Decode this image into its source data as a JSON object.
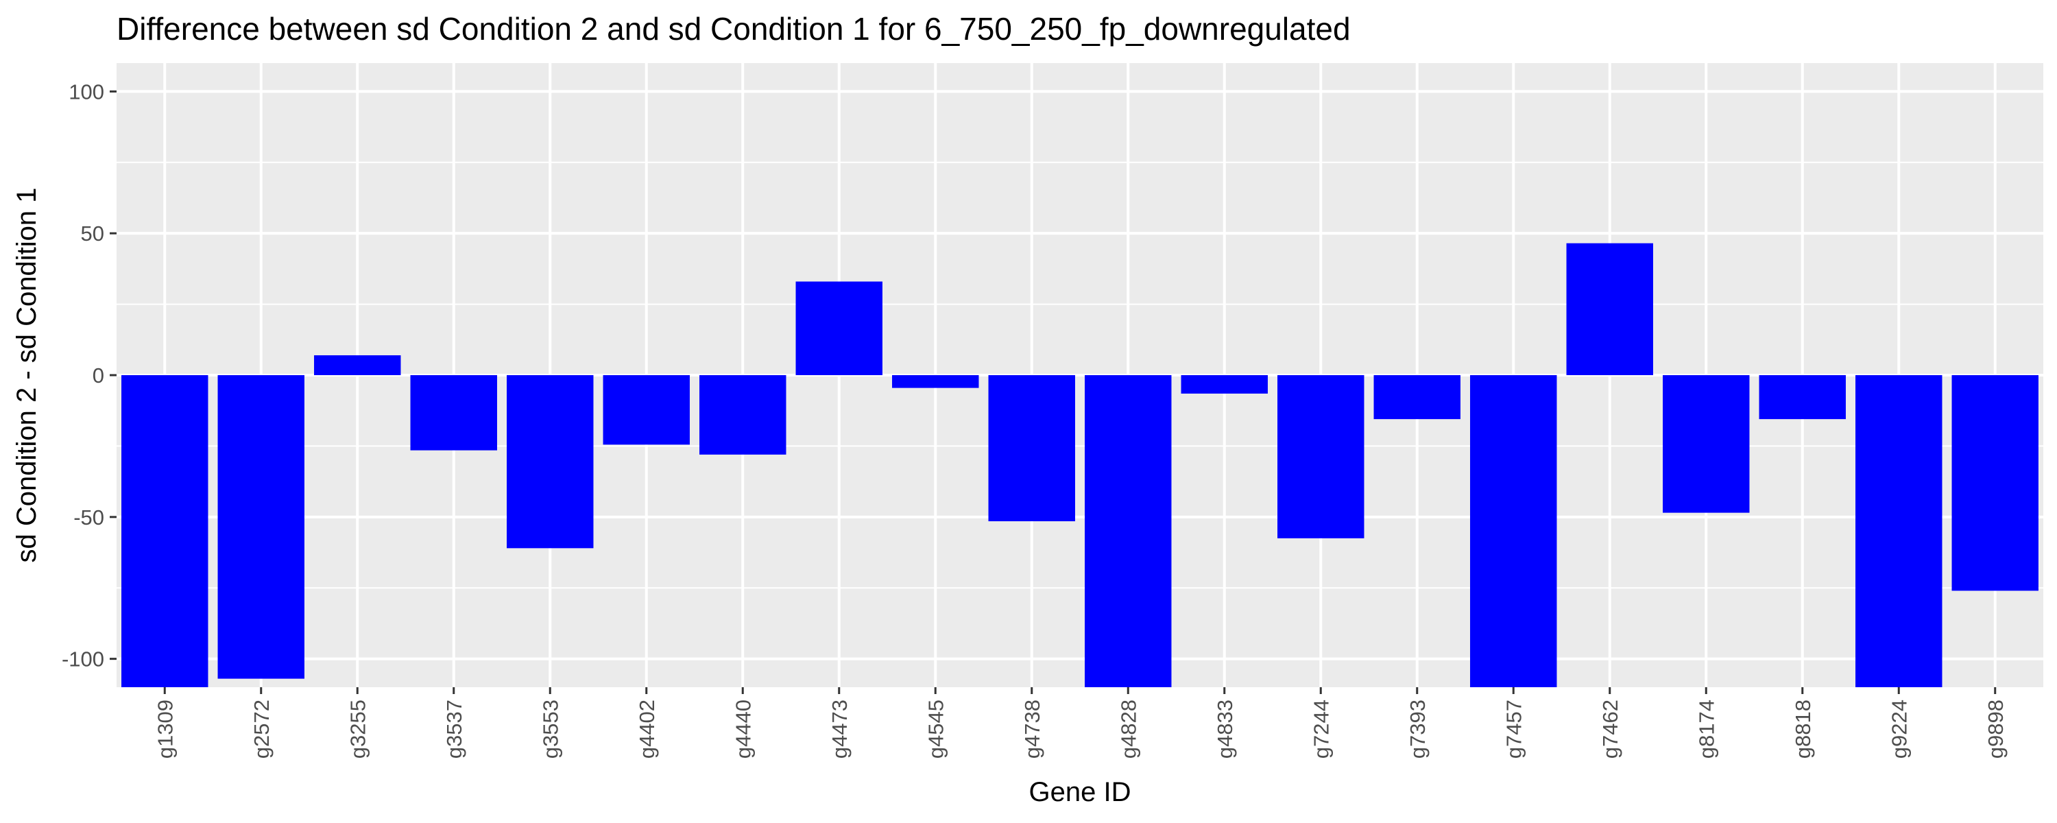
{
  "chart_data": {
    "type": "bar",
    "title": "Difference between sd Condition 2 and sd Condition 1 for 6_750_250_fp_downregulated",
    "xlabel": "Gene ID",
    "ylabel": "sd Condition 2 - sd Condition 1",
    "categories": [
      "g1309",
      "g2572",
      "g3255",
      "g3537",
      "g3553",
      "g4402",
      "g4440",
      "g4473",
      "g4545",
      "g4738",
      "g4828",
      "g4833",
      "g7244",
      "g7393",
      "g7457",
      "g7462",
      "g8174",
      "g8818",
      "g9224",
      "g9898"
    ],
    "values": [
      -110,
      -107,
      7,
      -26.5,
      -61,
      -24.5,
      -28,
      33,
      -4.5,
      -51.5,
      -110,
      -6.5,
      -57.5,
      -15.5,
      -110,
      46.5,
      -48.5,
      -15.5,
      -110,
      -76
    ],
    "ylim": [
      -110,
      110
    ],
    "yticks": [
      -100,
      -50,
      0,
      50,
      100
    ],
    "ytick_labels": [
      "-100",
      "-50",
      "0",
      "50",
      "100"
    ],
    "grid": true,
    "colors": {
      "bar": "#0000ff",
      "panel": "#ebebeb",
      "grid_major": "#ffffff",
      "tick_text": "#4d4d4d",
      "tick_mark": "#333333"
    }
  }
}
